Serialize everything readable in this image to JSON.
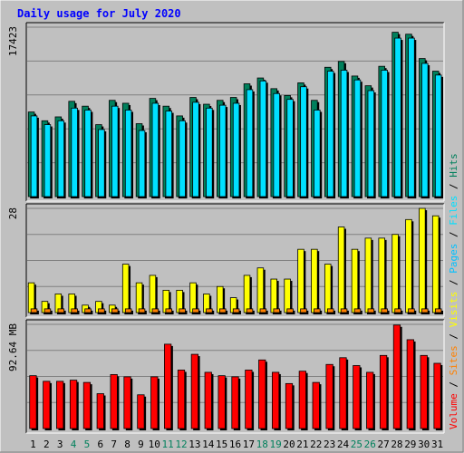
{
  "chart_data": {
    "type": "bar",
    "title": "Daily usage for July 2020",
    "categories": [
      "1",
      "2",
      "3",
      "4",
      "5",
      "6",
      "7",
      "8",
      "9",
      "10",
      "11",
      "12",
      "13",
      "14",
      "15",
      "16",
      "17",
      "18",
      "19",
      "20",
      "21",
      "22",
      "23",
      "24",
      "25",
      "26",
      "27",
      "28",
      "29",
      "30",
      "31"
    ],
    "weekend_days": [
      4,
      5,
      11,
      12,
      18,
      19,
      25,
      26
    ],
    "panels": [
      {
        "name": "hits_files",
        "max_label": "17423",
        "max": 17423,
        "series": [
          {
            "name": "Hits",
            "color": "#00805c",
            "values": [
              8700,
              7800,
              8200,
              9800,
              9300,
              7400,
              9900,
              9600,
              7500,
              10100,
              9300,
              8300,
              10200,
              9500,
              9900,
              10200,
              11600,
              12200,
              11100,
              10400,
              11700,
              9900,
              13300,
              13900,
              12400,
              11400,
              13400,
              16900,
              16700,
              14200,
              12900
            ]
          },
          {
            "name": "Files",
            "color": "#00e0ff",
            "values": [
              8300,
              7400,
              7800,
              9100,
              8900,
              6900,
              9300,
              8900,
              6800,
              9600,
              8800,
              7800,
              9700,
              9100,
              9400,
              9600,
              11000,
              11900,
              10600,
              10000,
              11300,
              8900,
              12900,
              13000,
              12000,
              10900,
              13000,
              16300,
              16300,
              13700,
              12500
            ]
          }
        ]
      },
      {
        "name": "visits_sites",
        "max_label": "28",
        "max": 28,
        "series": [
          {
            "name": "Visits",
            "color": "#ffff00",
            "values": [
              8,
              3,
              5,
              5,
              2,
              3,
              2,
              13,
              8,
              10,
              6,
              6,
              8,
              5,
              7,
              4,
              10,
              12,
              9,
              9,
              17,
              17,
              13,
              23,
              17,
              20,
              20,
              21,
              25,
              28,
              26
            ]
          },
          {
            "name": "Sites",
            "color": "#ff8000",
            "values": [
              1,
              1,
              1,
              1,
              1,
              1,
              1,
              1,
              1,
              1,
              1,
              1,
              1,
              1,
              1,
              1,
              1,
              1,
              1,
              1,
              1,
              1,
              1,
              1,
              1,
              1,
              1,
              1,
              1,
              1,
              1
            ]
          }
        ]
      },
      {
        "name": "volume",
        "max_label": "92.64 MB",
        "max": 92.64,
        "series": [
          {
            "name": "Volume",
            "color": "#ff0000",
            "values": [
              47,
              42,
              42,
              43,
              41,
              31,
              48,
              46,
              30,
              46,
              75,
              52,
              66,
              50,
              47,
              46,
              52,
              61,
              50,
              40,
              51,
              41,
              57,
              63,
              56,
              50,
              65,
              92,
              79,
              65,
              58
            ]
          }
        ]
      }
    ],
    "legend": [
      {
        "label": "Volume",
        "color": "#ff0000"
      },
      {
        "label": "/",
        "color": "#000000"
      },
      {
        "label": "Sites",
        "color": "#ff8000"
      },
      {
        "label": "/",
        "color": "#000000"
      },
      {
        "label": "Visits",
        "color": "#ffff00"
      },
      {
        "label": "/",
        "color": "#000000"
      },
      {
        "label": "Pages",
        "color": "#00c0ff"
      },
      {
        "label": "/",
        "color": "#000000"
      },
      {
        "label": "Files",
        "color": "#00e0ff"
      },
      {
        "label": "/",
        "color": "#000000"
      },
      {
        "label": "Hits",
        "color": "#00805c"
      }
    ],
    "colors": {
      "background": "#c0c0c0",
      "title": "#0000ff",
      "weekend_label": "#00805c",
      "weekday_label": "#000000",
      "grid": "#808080"
    }
  }
}
